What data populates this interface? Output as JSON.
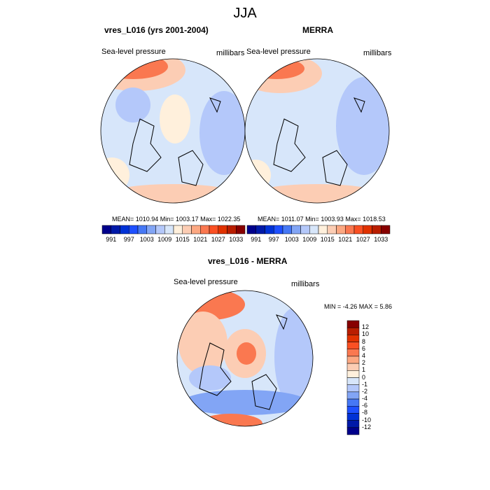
{
  "title": "JJA",
  "palette": [
    "#00008b",
    "#0019a8",
    "#0032d6",
    "#1e50ff",
    "#4678f5",
    "#82a5f5",
    "#b4c8fa",
    "#d7e6fa",
    "#fff0dc",
    "#fccdb4",
    "#fca882",
    "#fa7850",
    "#fa5023",
    "#e13200",
    "#b91e00",
    "#870000"
  ],
  "panels": [
    {
      "title": "vres_L016 (yrs 2001-2004)",
      "left_label": "Sea-level pressure",
      "right_label": "millibars",
      "stats": "MEAN= 1010.94  Min= 1003.17  Max= 1022.35"
    },
    {
      "title": "MERRA",
      "left_label": "Sea-level pressure",
      "right_label": "millibars",
      "stats": "MEAN= 1011.07  Min= 1003.93  Max= 1018.53"
    },
    {
      "title": "vres_L016 - MERRA",
      "left_label": "Sea-level pressure",
      "right_label": "millibars",
      "stats": "MIN =  -4.26 MAX =   5.86"
    }
  ],
  "colorbar_horizontal": {
    "labels": [
      "991",
      "997",
      "1003",
      "1009",
      "1015",
      "1021",
      "1027",
      "1033"
    ]
  },
  "colorbar_vertical": {
    "labels": [
      "12",
      "10",
      "8",
      "6",
      "4",
      "2",
      "1",
      "0",
      "-1",
      "-2",
      "-4",
      "-6",
      "-8",
      "-10",
      "-12"
    ]
  }
}
